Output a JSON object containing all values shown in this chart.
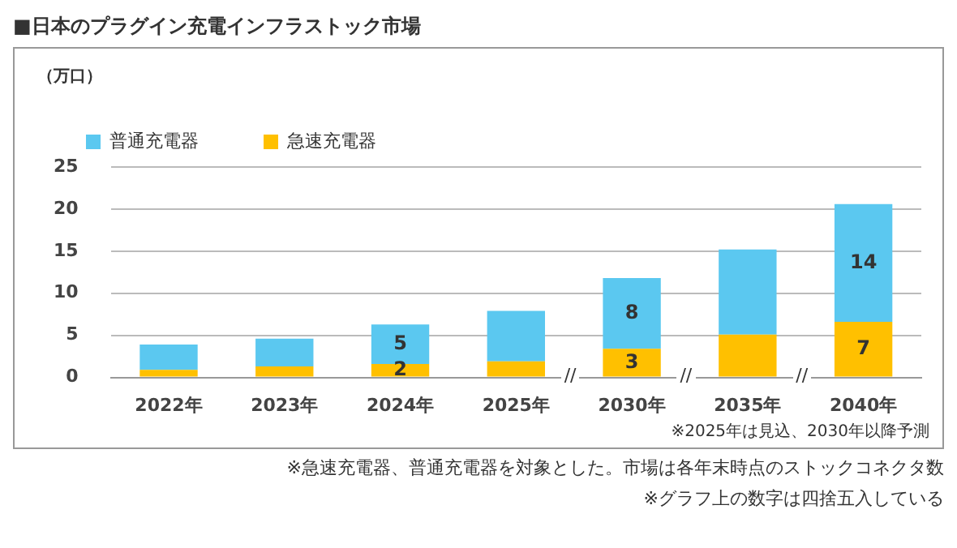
{
  "chart_data": {
    "type": "bar",
    "title": "■日本のプラグイン充電インフラストック市場",
    "ylabel": "（万口）",
    "categories": [
      "2022年",
      "2023年",
      "2024年",
      "2025年",
      "2030年",
      "2035年",
      "2040年"
    ],
    "stacked": true,
    "series": [
      {
        "name": "急速充電器",
        "color": "#ffc000",
        "values": [
          0.9,
          1.3,
          1.6,
          1.9,
          3.4,
          5.1,
          6.6
        ],
        "value_labels": [
          null,
          null,
          "2",
          null,
          "3",
          null,
          "7"
        ]
      },
      {
        "name": "普通充電器",
        "color": "#5bc8f0",
        "values": [
          3.0,
          3.3,
          4.7,
          6.0,
          8.4,
          10.1,
          14.0
        ],
        "value_labels": [
          null,
          null,
          "5",
          null,
          "8",
          null,
          "14"
        ]
      }
    ],
    "ylim": [
      0,
      25
    ],
    "yticks": [
      0,
      5,
      10,
      15,
      20,
      25
    ],
    "grid": "y",
    "legend": "top",
    "annotations": [
      "//",
      "//",
      "//",
      "※2025年は見込、2030年以降予測",
      "※急速充電器、普通充電器を対象とした。市場は各年末時点のストックコネクタ数",
      "※グラフ上の数字は四捨五入している"
    ]
  }
}
